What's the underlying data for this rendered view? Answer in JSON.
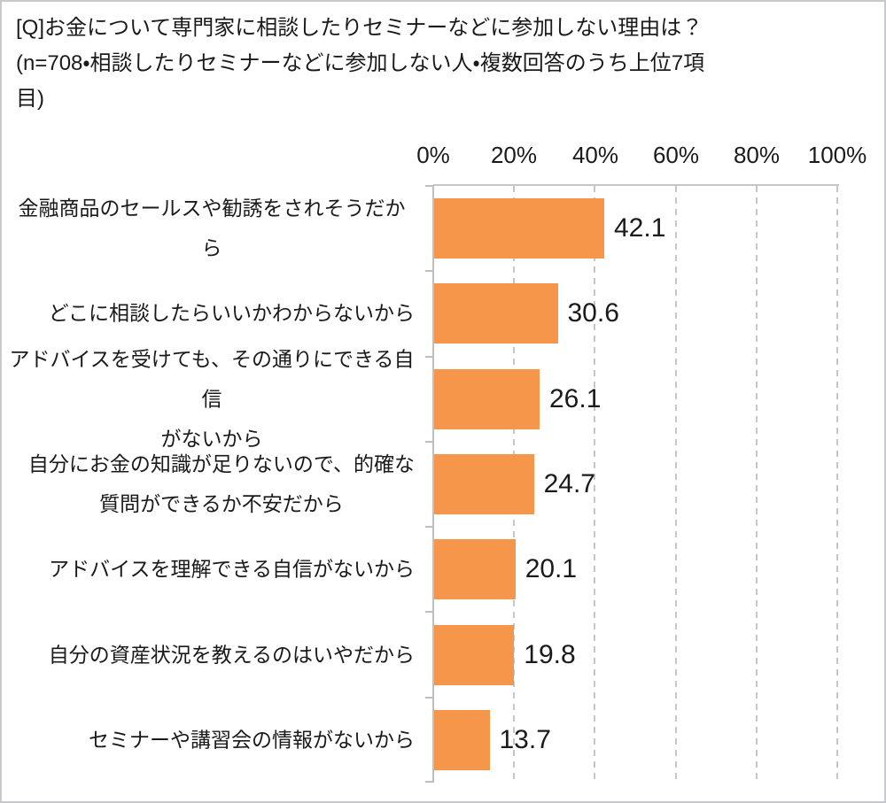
{
  "chart_data": {
    "type": "bar",
    "orientation": "horizontal",
    "title": "[Q]お金について専門家に相談したりセミナーなどに参加しない理由は？",
    "subtitle": "(n=708・相談したりセミナーなどに参加しない人・複数回答のうち上位7項目)",
    "categories": [
      "金融商品のセールスや勧誘をされそうだから",
      "どこに相談したらいいかわからないから",
      "アドバイスを受けても、その通りにできる自信がないから",
      "自分にお金の知識が足りないので、的確な質問ができるか不安だから",
      "アドバイスを理解できる自信がないから",
      "自分の資産状況を教えるのはいやだから",
      "セミナーや講習会の情報がないから"
    ],
    "values": [
      42.1,
      30.6,
      26.1,
      24.7,
      20.1,
      19.8,
      13.7
    ],
    "xlabel": "",
    "ylabel": "",
    "xlim": [
      0,
      100
    ],
    "x_ticks": [
      "0%",
      "20%",
      "40%",
      "60%",
      "80%",
      "100%"
    ],
    "gridlines": "vertical-dashed",
    "legend": "none",
    "bar_color": "#f5964a",
    "gridline_color": "#c6c6c6",
    "axis_color": "#bfbfbf"
  },
  "ui": {
    "title_display": "[Q]お金について専門家に相談したりセミナーなどに参加しない理由は？\n(n=708・相談したりセミナーなどに参加しない人・複数回答のうち上位7項\n目)",
    "category_labels_display": [
      "金融商品のセールスや勧誘をされそうだから",
      "どこに相談したらいいかわからないから",
      "アドバイスを受けても、その通りにできる自信\nがないから",
      "自分にお金の知識が足りないので、的確な\n質問ができるか不安だから",
      "アドバイスを理解できる自信がないから",
      "自分の資産状況を教えるのはいやだから",
      "セミナーや講習会の情報がないから"
    ]
  }
}
